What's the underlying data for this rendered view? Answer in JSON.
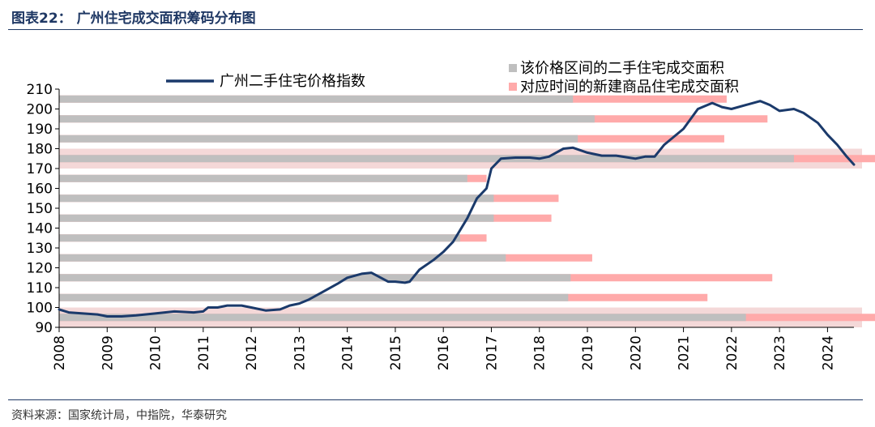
{
  "header": {
    "title": "图表22：  广州住宅成交面积筹码分布图"
  },
  "footer": {
    "source": "资料来源：国家统计局，中指院，华泰研究"
  },
  "colors": {
    "line": "#1b3a6b",
    "gray": "#bfbfbf",
    "pink": "#ffaaaa",
    "band": "#f4d8d8",
    "axis": "#000000"
  },
  "chart_data": {
    "type": "line",
    "x_ticks": [
      "2008",
      "2009",
      "2010",
      "2011",
      "2012",
      "2013",
      "2014",
      "2015",
      "2016",
      "2017",
      "2018",
      "2019",
      "2020",
      "2021",
      "2022",
      "2023",
      "2024"
    ],
    "xlim": [
      2008,
      2024.55
    ],
    "ylim": [
      90,
      210
    ],
    "y_ticks": [
      "90",
      "100",
      "110",
      "120",
      "130",
      "140",
      "150",
      "160",
      "170",
      "180",
      "190",
      "200",
      "210"
    ],
    "series": [
      {
        "name": "广州二手住宅价格指数",
        "x": [
          2008.0,
          2008.2,
          2008.5,
          2008.8,
          2009.0,
          2009.3,
          2009.6,
          2010.0,
          2010.4,
          2010.8,
          2011.0,
          2011.1,
          2011.3,
          2011.5,
          2011.8,
          2012.0,
          2012.3,
          2012.6,
          2012.8,
          2013.0,
          2013.2,
          2013.5,
          2013.8,
          2014.0,
          2014.3,
          2014.5,
          2014.7,
          2014.85,
          2015.0,
          2015.2,
          2015.3,
          2015.5,
          2015.8,
          2016.0,
          2016.2,
          2016.5,
          2016.7,
          2016.9,
          2017.0,
          2017.2,
          2017.5,
          2017.8,
          2018.0,
          2018.2,
          2018.5,
          2018.7,
          2019.0,
          2019.3,
          2019.6,
          2020.0,
          2020.2,
          2020.4,
          2020.6,
          2021.0,
          2021.3,
          2021.6,
          2021.8,
          2022.0,
          2022.3,
          2022.6,
          2022.8,
          2023.0,
          2023.3,
          2023.5,
          2023.8,
          2024.0,
          2024.2,
          2024.4,
          2024.55
        ],
        "y": [
          99,
          97.5,
          97,
          96.5,
          95.5,
          95.5,
          96,
          97,
          98,
          97.5,
          98,
          100,
          100,
          101,
          101,
          100,
          98.5,
          99,
          101,
          102,
          104,
          108,
          112,
          115,
          117,
          117.5,
          115,
          113,
          113,
          112.5,
          113,
          119,
          124,
          128,
          133,
          145,
          155,
          160,
          170,
          175,
          175.5,
          175.5,
          175,
          176,
          180,
          180.5,
          178,
          176.5,
          176.5,
          175,
          176,
          176,
          182,
          190,
          200,
          203,
          201,
          200,
          202,
          204,
          202,
          199,
          200,
          198,
          193,
          187,
          182,
          176,
          172
        ]
      }
    ],
    "bars": {
      "legend_gray": "该价格区间的二手住宅成交面积",
      "legend_pink": "对应时间的新建商品住宅成交面积",
      "rows": [
        {
          "level": 205,
          "gray": 10.7,
          "total": 13.9
        },
        {
          "level": 195,
          "gray": 11.15,
          "total": 14.75
        },
        {
          "level": 185,
          "gray": 10.8,
          "total": 13.85
        },
        {
          "level": 175,
          "gray": 15.3,
          "total": 22.75
        },
        {
          "level": 165,
          "gray": 8.5,
          "total": 8.9
        },
        {
          "level": 155,
          "gray": 9.05,
          "total": 10.4
        },
        {
          "level": 145,
          "gray": 9.05,
          "total": 10.25
        },
        {
          "level": 135,
          "gray": 8.35,
          "total": 8.9
        },
        {
          "level": 125,
          "gray": 9.3,
          "total": 11.1
        },
        {
          "level": 115,
          "gray": 10.65,
          "total": 14.85
        },
        {
          "level": 105,
          "gray": 10.6,
          "total": 13.5
        },
        {
          "level": 95,
          "gray": 14.3,
          "total": 20.75
        }
      ],
      "highlight_bands": [
        [
          170,
          180
        ],
        [
          90,
          100
        ]
      ]
    }
  }
}
